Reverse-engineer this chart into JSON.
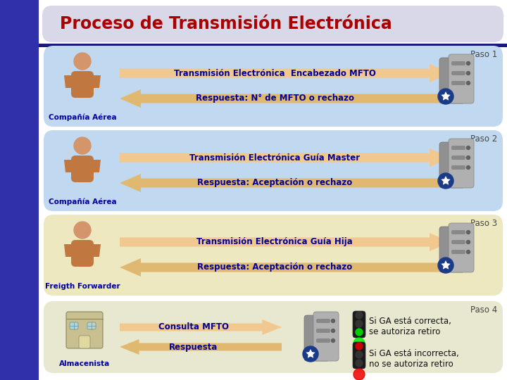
{
  "title": "Proceso de Transmisión Electrónica",
  "title_color": "#AA0000",
  "bg_color": "#3333BB",
  "left_bar_color": "#3333BB",
  "dark_bar_color": "#22228A",
  "title_bg": "#D8D8E8",
  "steps": [
    {
      "label": "Paso 1",
      "bg": "#C0D8F0",
      "forward_text": "Transmisión Electrónica  Encabezado MFTO",
      "backward_text": "Respuesta: N° de MFTO o rechazo",
      "person_label": "Compañía Aérea",
      "arrow_fwd_color": "#F0C890",
      "arrow_bwd_color": "#E0B870"
    },
    {
      "label": "Paso 2",
      "bg": "#C0D8F0",
      "forward_text": "Transmisión Electrónica Guía Master",
      "backward_text": "Respuesta: Aceptación o rechazo",
      "person_label": "Compañía Aérea",
      "arrow_fwd_color": "#F0C890",
      "arrow_bwd_color": "#E0B870"
    },
    {
      "label": "Paso 3",
      "bg": "#EDE8C0",
      "forward_text": "Transmisión Electrónica Guía Hija",
      "backward_text": "Respuesta: Aceptación o rechazo",
      "person_label": "Freigth Forwarder",
      "arrow_fwd_color": "#F0C890",
      "arrow_bwd_color": "#E0B870"
    }
  ],
  "step4": {
    "label": "Paso 4",
    "bg": "#E8E8D0",
    "forward_text": "Consulta MFTO",
    "backward_text": "Respuesta",
    "person_label": "Almacenista",
    "text_correct": "Si GA está correcta,\nse autoriza retiro",
    "text_incorrect": "Si GA está incorrecta,\nno se autoriza retiro",
    "arrow_fwd_color": "#F0C890",
    "arrow_bwd_color": "#E0B870"
  },
  "arrow_text_color": "#000099",
  "paso_label_color": "#444444",
  "person_label_color": "#000099"
}
